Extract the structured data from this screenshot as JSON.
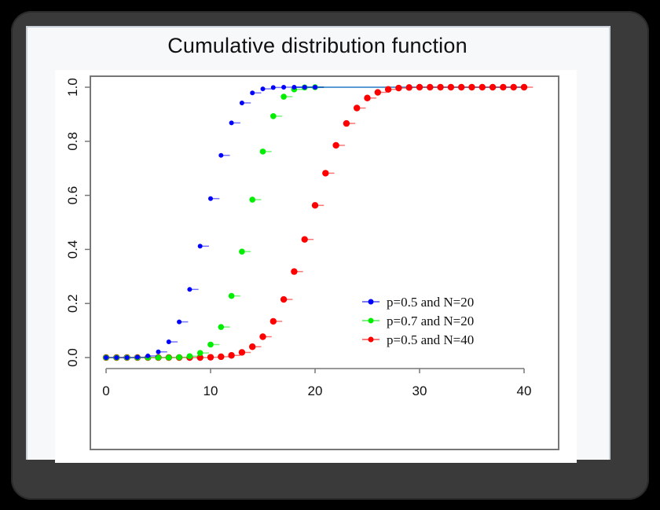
{
  "chart_data": {
    "type": "scatter",
    "title": "Cumulative distribution function",
    "xlabel": "",
    "ylabel": "",
    "xlim": [
      0,
      40
    ],
    "ylim": [
      0,
      1
    ],
    "x_ticks": [
      "0",
      "10",
      "20",
      "30",
      "40"
    ],
    "y_ticks": [
      "0.0",
      "0.2",
      "0.4",
      "0.6",
      "0.8",
      "1.0"
    ],
    "grid": false,
    "legend_position": "lower right (inside)",
    "series": [
      {
        "name": "p=0.5 and N=20",
        "color": "#0000ff",
        "x": [
          0,
          1,
          2,
          3,
          4,
          5,
          6,
          7,
          8,
          9,
          10,
          11,
          12,
          13,
          14,
          15,
          16,
          17,
          18,
          19,
          20
        ],
        "values": [
          0.0,
          0.0,
          0.0,
          0.001,
          0.006,
          0.021,
          0.058,
          0.132,
          0.252,
          0.412,
          0.588,
          0.748,
          0.868,
          0.942,
          0.979,
          0.994,
          0.999,
          1.0,
          1.0,
          1.0,
          1.0
        ]
      },
      {
        "name": "p=0.7 and N=20",
        "color": "#00ee00",
        "x": [
          0,
          1,
          2,
          3,
          4,
          5,
          6,
          7,
          8,
          9,
          10,
          11,
          12,
          13,
          14,
          15,
          16,
          17,
          18,
          19,
          20
        ],
        "values": [
          0.0,
          0.0,
          0.0,
          0.0,
          0.0,
          0.0,
          0.0,
          0.001,
          0.005,
          0.017,
          0.048,
          0.113,
          0.228,
          0.392,
          0.584,
          0.762,
          0.893,
          0.965,
          0.992,
          0.999,
          1.0
        ]
      },
      {
        "name": "p=0.5 and N=40",
        "color": "#ff0000",
        "x": [
          0,
          1,
          2,
          3,
          4,
          5,
          6,
          7,
          8,
          9,
          10,
          11,
          12,
          13,
          14,
          15,
          16,
          17,
          18,
          19,
          20,
          21,
          22,
          23,
          24,
          25,
          26,
          27,
          28,
          29,
          30,
          31,
          32,
          33,
          34,
          35,
          36,
          37,
          38,
          39,
          40
        ],
        "values": [
          0,
          0,
          0,
          0,
          0,
          0,
          0,
          0,
          0.0,
          0.0,
          0.001,
          0.003,
          0.008,
          0.019,
          0.04,
          0.077,
          0.134,
          0.215,
          0.318,
          0.437,
          0.563,
          0.682,
          0.785,
          0.866,
          0.923,
          0.96,
          0.981,
          0.992,
          0.997,
          0.999,
          1.0,
          1.0,
          1.0,
          1.0,
          1.0,
          1.0,
          1.0,
          1.0,
          1.0,
          1.0,
          1.0
        ]
      }
    ],
    "reference_line": {
      "y": 1.0,
      "color": "#5b9bd5",
      "from_x": 20,
      "to_x": 40
    }
  },
  "legend": [
    {
      "label": "p=0.5 and N=20",
      "color": "#0000ff"
    },
    {
      "label": "p=0.7 and N=20",
      "color": "#00ee00"
    },
    {
      "label": "p=0.5 and N=40",
      "color": "#ff0000"
    }
  ]
}
